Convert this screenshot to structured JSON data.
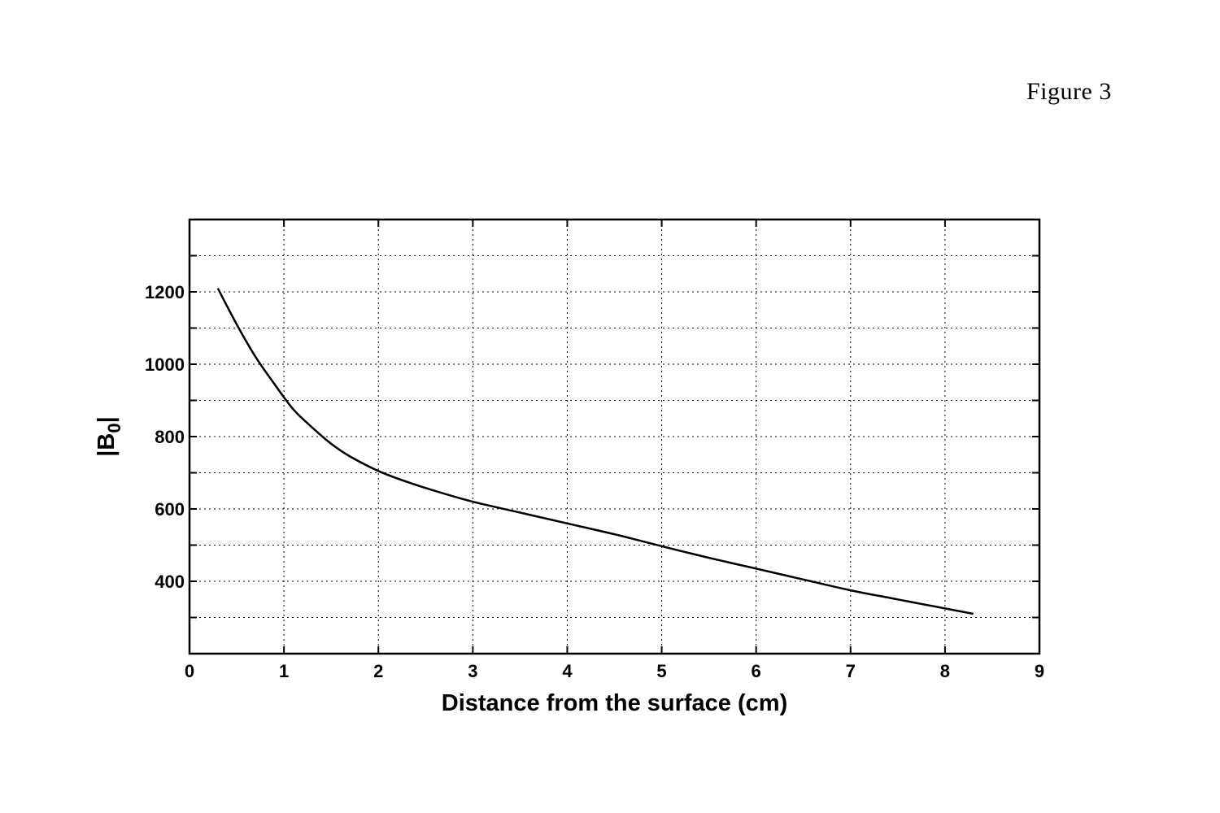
{
  "figure_label": "Figure 3",
  "chart_data": {
    "type": "line",
    "title": "",
    "xlabel": "Distance from the surface (cm)",
    "ylabel": "|B",
    "ylabel_subscript": "0",
    "ylabel_suffix": "|",
    "xlim": [
      0,
      9
    ],
    "ylim": [
      200,
      1400
    ],
    "x_ticks": [
      0,
      1,
      2,
      3,
      4,
      5,
      6,
      7,
      8,
      9
    ],
    "x_tick_labels": [
      "0",
      "1",
      "2",
      "3",
      "4",
      "5",
      "6",
      "7",
      "8",
      "9"
    ],
    "y_ticks": [
      400,
      600,
      800,
      1000,
      1200
    ],
    "y_tick_labels": [
      "400",
      "600",
      "800",
      "1000",
      "1200"
    ],
    "y_minor_ticks": [
      300,
      500,
      700,
      900,
      1100,
      1300
    ],
    "grid": true,
    "line_color": "#000000",
    "series": [
      {
        "x": [
          0.3,
          0.5,
          0.7,
          0.9,
          1.1,
          1.3,
          1.5,
          1.7,
          2.0,
          2.3,
          2.6,
          3.0,
          3.5,
          4.0,
          4.5,
          5.0,
          5.5,
          6.0,
          6.5,
          7.0,
          7.5,
          8.0,
          8.3
        ],
        "y": [
          1210,
          1110,
          1020,
          945,
          875,
          825,
          780,
          745,
          705,
          675,
          650,
          620,
          590,
          560,
          530,
          497,
          465,
          435,
          405,
          375,
          350,
          325,
          310
        ]
      }
    ]
  }
}
